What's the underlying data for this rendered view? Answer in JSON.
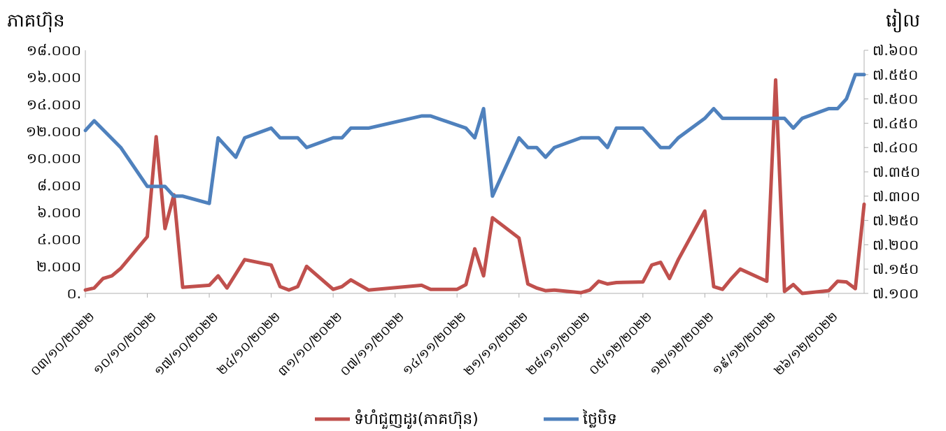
{
  "chart_data": {
    "type": "line",
    "title": "",
    "y_left_label": "ភាគហ៊ុន",
    "y_right_label": "រៀល",
    "y_left_ticks": [
      "០.",
      "២.០០០",
      "៤.០០០",
      "៦.០០០",
      "៨.០០០",
      "១០.០០០",
      "១២.០០០",
      "១៤.០០០",
      "១៦.០០០",
      "១៨.០០០"
    ],
    "y_right_ticks": [
      "៧.១០០",
      "៧.១៥០",
      "៧.២០០",
      "៧.២៥០",
      "៧.៣០០",
      "៧.៣៥០",
      "៧.៤០០",
      "៧.៤៥០",
      "៧.៥០០",
      "៧.៥៥០",
      "៧.៦០០"
    ],
    "y_left_range": [
      0,
      18000
    ],
    "y_right_range": [
      7100,
      7600
    ],
    "x_range": [
      "2022-10-03",
      "2022-12-30"
    ],
    "x_tick_labels": [
      "០៣/១០/២០២២",
      "១០/១០/២០២២",
      "១៧/១០/២០២២",
      "២៤/១០/២០២២",
      "៣១/១០/២០២២",
      "០៧/១១/២០២២",
      "១៤/១១/២០២២",
      "២១/១១/២០២២",
      "២៨/១១/២០២២",
      "០៥/១២/២០២២",
      "១២/១២/២០២២",
      "១៩/១២/២០២២",
      "២៦/១២/២០២២"
    ],
    "x_tick_dates": [
      "2022-10-03",
      "2022-10-10",
      "2022-10-17",
      "2022-10-24",
      "2022-10-31",
      "2022-11-07",
      "2022-11-14",
      "2022-11-21",
      "2022-11-28",
      "2022-12-05",
      "2022-12-12",
      "2022-12-19",
      "2022-12-26"
    ],
    "legend_position": "bottom",
    "grid": false,
    "series": [
      {
        "name": "ទំហំជួញដូរ(ភាគហ៊ុន)",
        "axis": "left",
        "color": "#C0504D",
        "points": [
          [
            "2022-10-03",
            250
          ],
          [
            "2022-10-04",
            400
          ],
          [
            "2022-10-05",
            1100
          ],
          [
            "2022-10-06",
            1300
          ],
          [
            "2022-10-07",
            1850
          ],
          [
            "2022-10-10",
            4200
          ],
          [
            "2022-10-11",
            11600
          ],
          [
            "2022-10-12",
            4800
          ],
          [
            "2022-10-13",
            7300
          ],
          [
            "2022-10-14",
            450
          ],
          [
            "2022-10-17",
            600
          ],
          [
            "2022-10-18",
            1300
          ],
          [
            "2022-10-19",
            400
          ],
          [
            "2022-10-21",
            2500
          ],
          [
            "2022-10-24",
            2100
          ],
          [
            "2022-10-25",
            500
          ],
          [
            "2022-10-26",
            250
          ],
          [
            "2022-10-27",
            500
          ],
          [
            "2022-10-28",
            2000
          ],
          [
            "2022-10-31",
            300
          ],
          [
            "2022-11-01",
            500
          ],
          [
            "2022-11-02",
            1000
          ],
          [
            "2022-11-04",
            250
          ],
          [
            "2022-11-10",
            600
          ],
          [
            "2022-11-11",
            300
          ],
          [
            "2022-11-14",
            300
          ],
          [
            "2022-11-15",
            650
          ],
          [
            "2022-11-16",
            3300
          ],
          [
            "2022-11-17",
            1300
          ],
          [
            "2022-11-18",
            5600
          ],
          [
            "2022-11-21",
            4100
          ],
          [
            "2022-11-22",
            700
          ],
          [
            "2022-11-23",
            400
          ],
          [
            "2022-11-24",
            200
          ],
          [
            "2022-11-25",
            250
          ],
          [
            "2022-11-28",
            50
          ],
          [
            "2022-11-29",
            250
          ],
          [
            "2022-11-30",
            900
          ],
          [
            "2022-12-01",
            700
          ],
          [
            "2022-12-02",
            800
          ],
          [
            "2022-12-05",
            850
          ],
          [
            "2022-12-06",
            2100
          ],
          [
            "2022-12-07",
            2300
          ],
          [
            "2022-12-08",
            1100
          ],
          [
            "2022-12-09",
            2500
          ],
          [
            "2022-12-12",
            6100
          ],
          [
            "2022-12-13",
            500
          ],
          [
            "2022-12-14",
            300
          ],
          [
            "2022-12-15",
            1100
          ],
          [
            "2022-12-16",
            1800
          ],
          [
            "2022-12-19",
            900
          ],
          [
            "2022-12-20",
            15800
          ],
          [
            "2022-12-21",
            150
          ],
          [
            "2022-12-22",
            650
          ],
          [
            "2022-12-23",
            0
          ],
          [
            "2022-12-26",
            200
          ],
          [
            "2022-12-27",
            900
          ],
          [
            "2022-12-28",
            850
          ],
          [
            "2022-12-29",
            350
          ],
          [
            "2022-12-30",
            6600
          ]
        ]
      },
      {
        "name": "ថ្លៃបិទ",
        "axis": "right",
        "color": "#4F81BD",
        "points": [
          [
            "2022-10-03",
            7435
          ],
          [
            "2022-10-04",
            7455
          ],
          [
            "2022-10-07",
            7400
          ],
          [
            "2022-10-10",
            7320
          ],
          [
            "2022-10-11",
            7320
          ],
          [
            "2022-10-12",
            7320
          ],
          [
            "2022-10-13",
            7300
          ],
          [
            "2022-10-14",
            7300
          ],
          [
            "2022-10-17",
            7285
          ],
          [
            "2022-10-18",
            7420
          ],
          [
            "2022-10-20",
            7380
          ],
          [
            "2022-10-21",
            7420
          ],
          [
            "2022-10-24",
            7440
          ],
          [
            "2022-10-25",
            7420
          ],
          [
            "2022-10-27",
            7420
          ],
          [
            "2022-10-28",
            7400
          ],
          [
            "2022-10-31",
            7420
          ],
          [
            "2022-11-01",
            7420
          ],
          [
            "2022-11-02",
            7440
          ],
          [
            "2022-11-04",
            7440
          ],
          [
            "2022-11-10",
            7465
          ],
          [
            "2022-11-11",
            7465
          ],
          [
            "2022-11-15",
            7440
          ],
          [
            "2022-11-16",
            7420
          ],
          [
            "2022-11-17",
            7480
          ],
          [
            "2022-11-18",
            7300
          ],
          [
            "2022-11-21",
            7420
          ],
          [
            "2022-11-22",
            7400
          ],
          [
            "2022-11-23",
            7400
          ],
          [
            "2022-11-24",
            7380
          ],
          [
            "2022-11-25",
            7400
          ],
          [
            "2022-11-28",
            7420
          ],
          [
            "2022-11-29",
            7420
          ],
          [
            "2022-11-30",
            7420
          ],
          [
            "2022-12-01",
            7400
          ],
          [
            "2022-12-02",
            7440
          ],
          [
            "2022-12-05",
            7440
          ],
          [
            "2022-12-06",
            7420
          ],
          [
            "2022-12-07",
            7400
          ],
          [
            "2022-12-08",
            7400
          ],
          [
            "2022-12-09",
            7420
          ],
          [
            "2022-12-12",
            7460
          ],
          [
            "2022-12-13",
            7480
          ],
          [
            "2022-12-14",
            7460
          ],
          [
            "2022-12-19",
            7460
          ],
          [
            "2022-12-20",
            7460
          ],
          [
            "2022-12-21",
            7460
          ],
          [
            "2022-12-22",
            7440
          ],
          [
            "2022-12-23",
            7460
          ],
          [
            "2022-12-26",
            7480
          ],
          [
            "2022-12-27",
            7480
          ],
          [
            "2022-12-28",
            7500
          ],
          [
            "2022-12-29",
            7550
          ],
          [
            "2022-12-30",
            7550
          ]
        ]
      }
    ]
  }
}
